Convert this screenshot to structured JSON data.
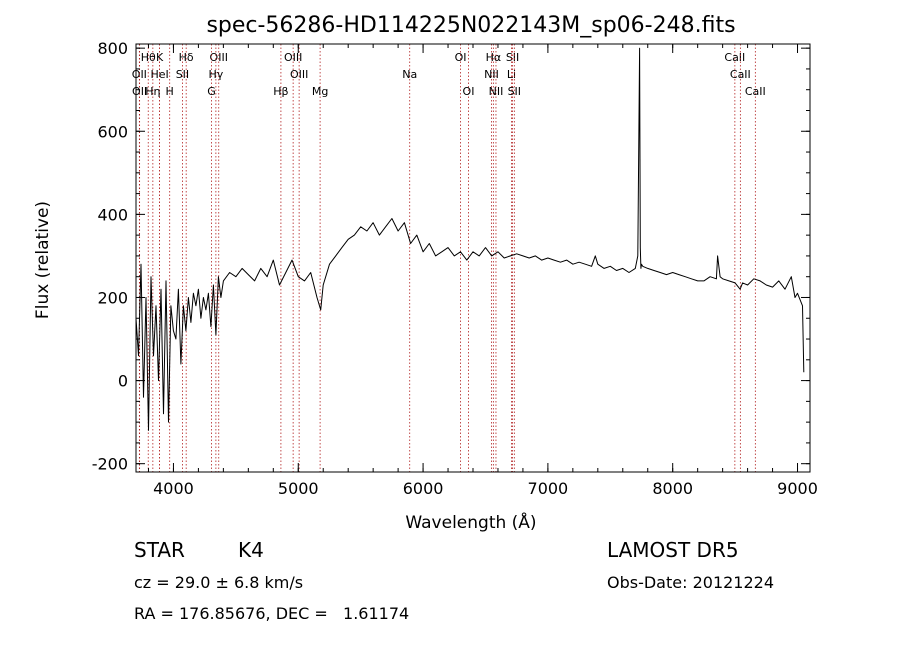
{
  "chart_data": {
    "type": "line",
    "title": "spec-56286-HD114225N022143M_sp06-248.fits",
    "xlabel": "Wavelength (Å)",
    "ylabel": "Flux (relative)",
    "xlim": [
      3700,
      9100
    ],
    "ylim": [
      -220,
      810
    ],
    "xticks": [
      4000,
      5000,
      6000,
      7000,
      8000,
      9000
    ],
    "yticks": [
      -200,
      0,
      200,
      400,
      600,
      800
    ],
    "grid": false,
    "series_color": "#000000",
    "line_color": "#b22222",
    "series": [
      {
        "x": [
          3700,
          3720,
          3740,
          3760,
          3780,
          3800,
          3820,
          3840,
          3860,
          3880,
          3900,
          3920,
          3940,
          3960,
          3980,
          4000,
          4020,
          4040,
          4060,
          4080,
          4100,
          4120,
          4140,
          4160,
          4180,
          4200,
          4220,
          4240,
          4260,
          4280,
          4300,
          4320,
          4340,
          4360,
          4380,
          4400,
          4450,
          4500,
          4550,
          4600,
          4650,
          4700,
          4750,
          4800,
          4850,
          4900,
          4950,
          5000,
          5050,
          5100,
          5150,
          5180,
          5200,
          5250,
          5300,
          5350,
          5400,
          5450,
          5500,
          5550,
          5600,
          5650,
          5700,
          5750,
          5800,
          5850,
          5900,
          5950,
          6000,
          6050,
          6100,
          6150,
          6200,
          6250,
          6300,
          6350,
          6400,
          6450,
          6500,
          6550,
          6600,
          6650,
          6700,
          6750,
          6800,
          6850,
          6900,
          6950,
          7000,
          7050,
          7100,
          7150,
          7200,
          7250,
          7300,
          7350,
          7380,
          7400,
          7450,
          7500,
          7550,
          7600,
          7650,
          7700,
          7720,
          7735,
          7740,
          7745,
          7750,
          7760,
          7800,
          7850,
          7900,
          7950,
          8000,
          8050,
          8100,
          8150,
          8200,
          8250,
          8300,
          8350,
          8360,
          8380,
          8400,
          8450,
          8500,
          8540,
          8560,
          8600,
          8650,
          8700,
          8750,
          8800,
          8850,
          8900,
          8950,
          8980,
          9000,
          9020,
          9040,
          9050
        ],
        "y": [
          150,
          60,
          280,
          -40,
          200,
          -120,
          250,
          60,
          180,
          0,
          220,
          -80,
          240,
          -100,
          180,
          120,
          100,
          220,
          40,
          180,
          120,
          200,
          140,
          210,
          180,
          220,
          150,
          200,
          170,
          210,
          130,
          230,
          110,
          250,
          200,
          240,
          260,
          250,
          270,
          255,
          240,
          270,
          250,
          290,
          230,
          260,
          290,
          250,
          240,
          260,
          200,
          170,
          230,
          280,
          300,
          320,
          340,
          350,
          370,
          360,
          380,
          350,
          370,
          390,
          360,
          380,
          330,
          350,
          310,
          330,
          300,
          310,
          320,
          300,
          310,
          290,
          310,
          300,
          320,
          300,
          310,
          295,
          300,
          305,
          300,
          295,
          300,
          290,
          295,
          290,
          285,
          290,
          280,
          285,
          280,
          275,
          300,
          280,
          270,
          275,
          265,
          270,
          260,
          270,
          300,
          800,
          320,
          270,
          280,
          275,
          270,
          265,
          260,
          255,
          260,
          255,
          250,
          245,
          240,
          240,
          250,
          245,
          300,
          250,
          245,
          240,
          235,
          220,
          235,
          230,
          245,
          240,
          230,
          225,
          240,
          220,
          250,
          200,
          210,
          195,
          180,
          20
        ]
      }
    ],
    "lines_top": [
      {
        "x": 3798,
        "label": "Hθ"
      },
      {
        "x": 3889,
        "label": "K"
      },
      {
        "x": 4102,
        "label": "Hδ"
      },
      {
        "x": 4363,
        "label": "OIII"
      },
      {
        "x": 4959,
        "label": "OIII"
      },
      {
        "x": 6300,
        "label": "OI"
      },
      {
        "x": 6563,
        "label": "Hα"
      },
      {
        "x": 6717,
        "label": "SII"
      },
      {
        "x": 8498,
        "label": "CaII"
      }
    ],
    "lines_mid": [
      {
        "x": 3727,
        "label": "OII"
      },
      {
        "x": 3889,
        "label": "HeI"
      },
      {
        "x": 4072,
        "label": "SII"
      },
      {
        "x": 4340,
        "label": "Hγ"
      },
      {
        "x": 5007,
        "label": "OIII"
      },
      {
        "x": 5893,
        "label": "Na"
      },
      {
        "x": 6548,
        "label": "NII"
      },
      {
        "x": 6708,
        "label": "Li"
      },
      {
        "x": 8542,
        "label": "CaII"
      }
    ],
    "lines_low": [
      {
        "x": 3729,
        "label": "OII"
      },
      {
        "x": 3835,
        "label": "Hη"
      },
      {
        "x": 3970,
        "label": "H"
      },
      {
        "x": 4305,
        "label": "G"
      },
      {
        "x": 4861,
        "label": "Hβ"
      },
      {
        "x": 5175,
        "label": "Mg"
      },
      {
        "x": 6364,
        "label": "OI"
      },
      {
        "x": 6584,
        "label": "NII"
      },
      {
        "x": 6731,
        "label": "SII"
      },
      {
        "x": 8662,
        "label": "CaII"
      }
    ]
  },
  "info": {
    "object_type": "STAR",
    "subclass": "K4",
    "survey": "LAMOST DR5",
    "redshift": "cz = 29.0 ± 6.8 km/s",
    "obs_date": "Obs-Date: 20121224",
    "coords": "RA = 176.85676, DEC =   1.61174"
  }
}
